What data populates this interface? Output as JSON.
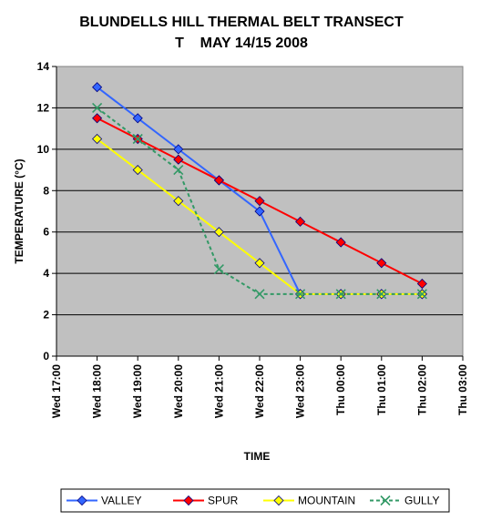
{
  "chart_data": {
    "type": "line",
    "title_line1": "BLUNDELLS HILL THERMAL BELT TRANSECT",
    "title_line2": "T    MAY 14/15 2008",
    "xlabel": "TIME",
    "ylabel": "TEMPERATURE (°C)",
    "x_ticks": [
      "Wed 17:00",
      "Wed 18:00",
      "Wed 19:00",
      "Wed 20:00",
      "Wed 21:00",
      "Wed 22:00",
      "Wed 23:00",
      "Thu 00:00",
      "Thu 01:00",
      "Thu 02:00",
      "Thu 03:00"
    ],
    "ylim": [
      0,
      14
    ],
    "y_ticks": [
      0,
      2,
      4,
      6,
      8,
      10,
      12,
      14
    ],
    "grid": "horizontal",
    "plot_background": "#c0c0c0",
    "legend_position": "bottom",
    "series": [
      {
        "name": "VALLEY",
        "color": "#3366ff",
        "marker": "diamond",
        "line": "solid",
        "points": [
          [
            "Wed 18:00",
            13
          ],
          [
            "Wed 19:00",
            11.5
          ],
          [
            "Wed 20:00",
            10
          ],
          [
            "Wed 21:00",
            8.5
          ],
          [
            "Wed 22:00",
            7
          ],
          [
            "Wed 23:00",
            3
          ],
          [
            "Thu 00:00",
            3
          ],
          [
            "Thu 01:00",
            3
          ],
          [
            "Thu 02:00",
            3
          ]
        ]
      },
      {
        "name": "SPUR",
        "color": "#ff0000",
        "marker": "diamond",
        "line": "solid",
        "points": [
          [
            "Wed 18:00",
            11.5
          ],
          [
            "Wed 19:00",
            10.5
          ],
          [
            "Wed 20:00",
            9.5
          ],
          [
            "Wed 21:00",
            8.5
          ],
          [
            "Wed 22:00",
            7.5
          ],
          [
            "Wed 23:00",
            6.5
          ],
          [
            "Thu 00:00",
            5.5
          ],
          [
            "Thu 01:00",
            4.5
          ],
          [
            "Thu 02:00",
            3.5
          ]
        ]
      },
      {
        "name": "MOUNTAIN",
        "color": "#ffff00",
        "marker": "diamond",
        "line": "solid",
        "points": [
          [
            "Wed 18:00",
            10.5
          ],
          [
            "Wed 19:00",
            9
          ],
          [
            "Wed 20:00",
            7.5
          ],
          [
            "Wed 21:00",
            6
          ],
          [
            "Wed 22:00",
            4.5
          ],
          [
            "Wed 23:00",
            3
          ],
          [
            "Thu 00:00",
            3
          ],
          [
            "Thu 01:00",
            3
          ],
          [
            "Thu 02:00",
            3
          ]
        ]
      },
      {
        "name": "GULLY",
        "color": "#339966",
        "marker": "x",
        "line": "dashed",
        "points": [
          [
            "Wed 18:00",
            12
          ],
          [
            "Wed 19:00",
            10.5
          ],
          [
            "Wed 20:00",
            9
          ],
          [
            "Wed 21:00",
            4.2
          ],
          [
            "Wed 22:00",
            3
          ],
          [
            "Wed 23:00",
            3
          ],
          [
            "Thu 00:00",
            3
          ],
          [
            "Thu 01:00",
            3
          ],
          [
            "Thu 02:00",
            3
          ]
        ]
      }
    ]
  }
}
